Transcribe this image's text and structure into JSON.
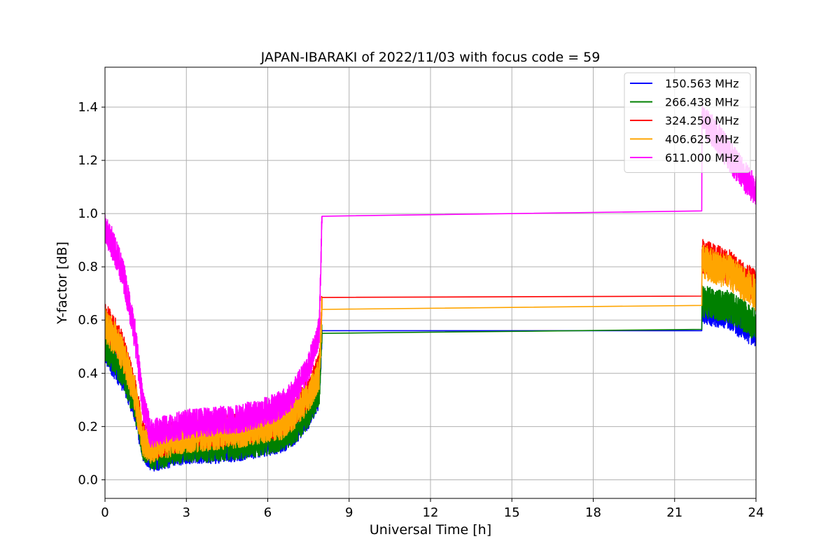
{
  "chart_data": {
    "type": "line",
    "title": "JAPAN-IBARAKI of 2022/11/03 with focus code = 59",
    "xlabel": "Universal Time [h]",
    "ylabel": "Y-factor [dB]",
    "xlim": [
      0,
      24
    ],
    "ylim": [
      -0.07,
      1.55
    ],
    "xticks": [
      0,
      3,
      6,
      9,
      12,
      15,
      18,
      21,
      24
    ],
    "yticks": [
      0.0,
      0.2,
      0.4,
      0.6,
      0.8,
      1.0,
      1.2,
      1.4
    ],
    "xtick_labels": [
      "0",
      "3",
      "6",
      "9",
      "12",
      "15",
      "18",
      "21",
      "24"
    ],
    "ytick_labels": [
      "0.0",
      "0.2",
      "0.4",
      "0.6",
      "0.8",
      "1.0",
      "1.2",
      "1.4"
    ],
    "grid": true,
    "legend_position": "top-right",
    "series": [
      {
        "name": "150.563 MHz",
        "color": "#0000ff",
        "noise": 0.05,
        "x": [
          0,
          0.3,
          0.7,
          1.1,
          1.4,
          1.7,
          2.2,
          3.0,
          4.0,
          5.0,
          6.0,
          6.5,
          7.0,
          7.5,
          7.9,
          8.0,
          22.0,
          22.01,
          22.5,
          23.0,
          23.5,
          24.0
        ],
        "y": [
          0.48,
          0.44,
          0.38,
          0.27,
          0.12,
          0.08,
          0.09,
          0.11,
          0.11,
          0.12,
          0.14,
          0.15,
          0.18,
          0.24,
          0.32,
          0.56,
          0.56,
          0.64,
          0.63,
          0.62,
          0.58,
          0.55
        ]
      },
      {
        "name": "266.438 MHz",
        "color": "#008000",
        "noise": 0.055,
        "x": [
          0,
          0.3,
          0.7,
          1.1,
          1.4,
          1.7,
          2.2,
          3.0,
          4.0,
          5.0,
          6.0,
          6.5,
          7.0,
          7.5,
          7.9,
          8.0,
          22.0,
          22.01,
          22.5,
          23.0,
          23.5,
          24.0
        ],
        "y": [
          0.5,
          0.46,
          0.4,
          0.28,
          0.13,
          0.09,
          0.1,
          0.12,
          0.12,
          0.13,
          0.15,
          0.16,
          0.19,
          0.25,
          0.33,
          0.55,
          0.565,
          0.67,
          0.66,
          0.65,
          0.62,
          0.58
        ]
      },
      {
        "name": "324.250 MHz",
        "color": "#ff0000",
        "noise": 0.06,
        "x": [
          0,
          0.3,
          0.7,
          1.1,
          1.4,
          1.7,
          2.2,
          3.0,
          4.0,
          5.0,
          6.0,
          6.5,
          7.0,
          7.5,
          7.9,
          8.0,
          22.0,
          22.01,
          22.5,
          23.0,
          23.5,
          24.0
        ],
        "y": [
          0.6,
          0.56,
          0.48,
          0.33,
          0.16,
          0.13,
          0.15,
          0.17,
          0.18,
          0.19,
          0.21,
          0.22,
          0.26,
          0.33,
          0.42,
          0.685,
          0.69,
          0.84,
          0.82,
          0.8,
          0.76,
          0.72
        ]
      },
      {
        "name": "406.625 MHz",
        "color": "#ffa500",
        "noise": 0.06,
        "x": [
          0,
          0.3,
          0.7,
          1.1,
          1.4,
          1.7,
          2.2,
          3.0,
          4.0,
          5.0,
          6.0,
          6.5,
          7.0,
          7.5,
          7.9,
          8.0,
          22.0,
          22.01,
          22.5,
          23.0,
          23.5,
          24.0
        ],
        "y": [
          0.58,
          0.54,
          0.46,
          0.32,
          0.15,
          0.12,
          0.14,
          0.16,
          0.17,
          0.18,
          0.2,
          0.21,
          0.25,
          0.31,
          0.4,
          0.64,
          0.655,
          0.82,
          0.8,
          0.78,
          0.74,
          0.7
        ]
      },
      {
        "name": "611.000 MHz",
        "color": "#ff00ff",
        "noise": 0.055,
        "x": [
          0,
          0.3,
          0.7,
          1.1,
          1.4,
          1.7,
          2.2,
          3.0,
          4.0,
          5.0,
          6.0,
          6.5,
          7.0,
          7.5,
          7.9,
          8.0,
          22.0,
          22.01,
          22.5,
          23.0,
          23.5,
          24.0
        ],
        "y": [
          0.95,
          0.88,
          0.76,
          0.55,
          0.28,
          0.17,
          0.19,
          0.21,
          0.22,
          0.23,
          0.26,
          0.28,
          0.33,
          0.42,
          0.56,
          0.99,
          1.01,
          1.35,
          1.3,
          1.22,
          1.15,
          1.08
        ]
      }
    ]
  }
}
